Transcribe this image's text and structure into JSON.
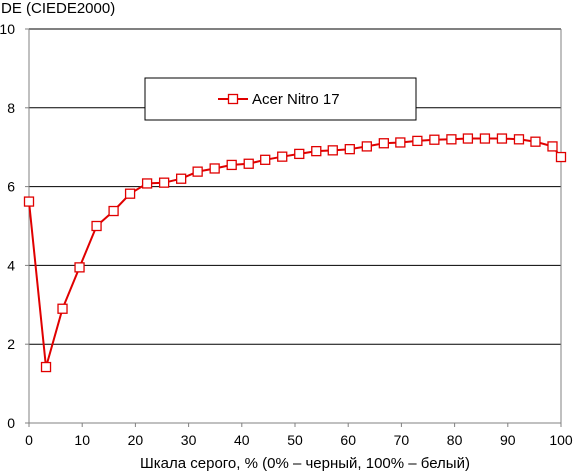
{
  "chart_data": {
    "type": "line",
    "title": "",
    "ylabel": "DE (CIEDE2000)",
    "xlabel": "Шкала серого, % (0% – черный, 100% – белый)",
    "xlim": [
      0,
      100
    ],
    "ylim": [
      0,
      10
    ],
    "xticks": [
      "0",
      "10",
      "20",
      "30",
      "40",
      "50",
      "60",
      "70",
      "80",
      "90",
      "100"
    ],
    "yticks": [
      "0",
      "2",
      "4",
      "6",
      "8",
      "10"
    ],
    "grid": "horizontal",
    "legend_position": "top-center",
    "colors": {
      "series": "#e00000",
      "marker_fill": "#ffffff",
      "grid": "#000000",
      "axis": "#808080"
    },
    "series": [
      {
        "name": "Acer Nitro 17",
        "marker": "square",
        "x": [
          0,
          3.2,
          6.3,
          9.5,
          12.7,
          15.9,
          19.0,
          22.2,
          25.4,
          28.6,
          31.7,
          34.9,
          38.1,
          41.3,
          44.4,
          47.6,
          50.8,
          54.0,
          57.1,
          60.3,
          63.5,
          66.7,
          69.8,
          73.0,
          76.2,
          79.4,
          82.5,
          85.7,
          88.9,
          92.1,
          95.2,
          98.4,
          100
        ],
        "y": [
          5.62,
          1.42,
          2.9,
          3.95,
          5.0,
          5.38,
          5.82,
          6.08,
          6.1,
          6.2,
          6.38,
          6.46,
          6.55,
          6.58,
          6.68,
          6.76,
          6.83,
          6.9,
          6.92,
          6.95,
          7.02,
          7.1,
          7.12,
          7.16,
          7.19,
          7.2,
          7.22,
          7.22,
          7.22,
          7.2,
          7.14,
          7.02,
          6.75
        ]
      }
    ]
  }
}
